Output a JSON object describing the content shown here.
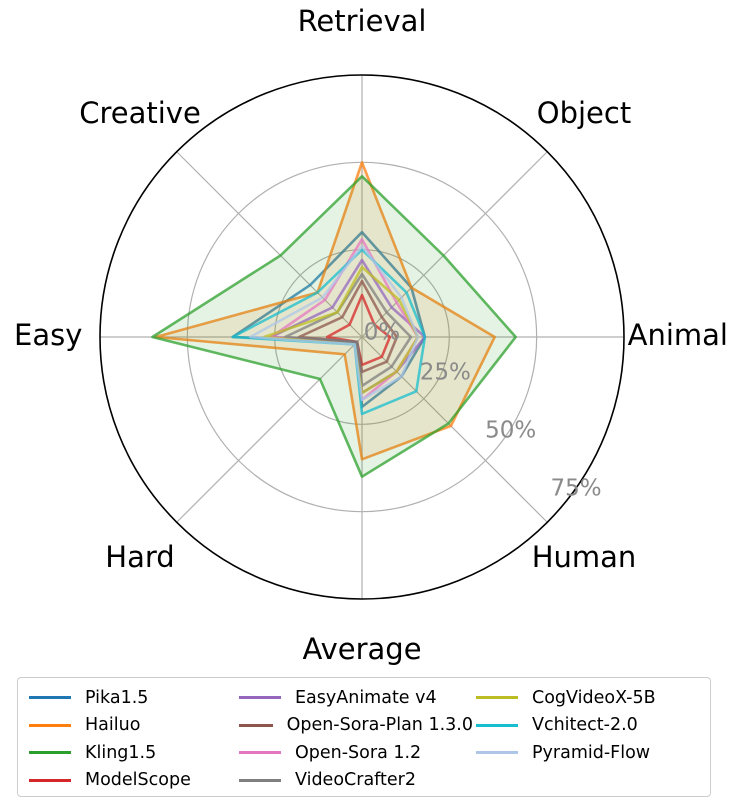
{
  "chart_data": {
    "type": "radar",
    "axes": [
      "Retrieval",
      "Object",
      "Animal",
      "Human",
      "Average",
      "Hard",
      "Easy",
      "Creative"
    ],
    "rticks": [
      "0%",
      "25%",
      "50%",
      "75%"
    ],
    "rmax": 75,
    "grid": true,
    "legend_position": "bottom",
    "series": [
      {
        "name": "Pika1.5",
        "color": "#1f77b4",
        "values": [
          30,
          20,
          18,
          16,
          20,
          2,
          37,
          21
        ],
        "fill": false
      },
      {
        "name": "Hailuo",
        "color": "#ff7f0e",
        "values": [
          50,
          20,
          38,
          36,
          35,
          7,
          59,
          18
        ],
        "fill": true
      },
      {
        "name": "Kling1.5",
        "color": "#2ca02c",
        "values": [
          46,
          33,
          44,
          35,
          40,
          17,
          60,
          33
        ],
        "fill": true
      },
      {
        "name": "ModelScope",
        "color": "#d62728",
        "values": [
          12,
          5,
          8,
          8,
          8,
          2,
          10,
          5
        ],
        "fill": false
      },
      {
        "name": "EasyAnimate v4",
        "color": "#9467bd",
        "values": [
          22,
          12,
          18,
          14,
          16,
          2,
          26,
          12
        ],
        "fill": false
      },
      {
        "name": "Open-Sora-Plan 1.3.0",
        "color": "#8c564b",
        "values": [
          16,
          8,
          10,
          10,
          10,
          2,
          18,
          8
        ],
        "fill": false
      },
      {
        "name": "Open-Sora 1.2",
        "color": "#e377c2",
        "values": [
          28,
          14,
          16,
          14,
          18,
          3,
          26,
          15
        ],
        "fill": false
      },
      {
        "name": "VideoCrafter2",
        "color": "#7f7f7f",
        "values": [
          18,
          10,
          14,
          12,
          14,
          2,
          22,
          10
        ],
        "fill": false
      },
      {
        "name": "CogVideoX-5B",
        "color": "#bcbd22",
        "values": [
          20,
          15,
          16,
          14,
          16,
          3,
          28,
          10
        ],
        "fill": false
      },
      {
        "name": "Vchitect-2.0",
        "color": "#17becf",
        "values": [
          25,
          18,
          18,
          22,
          22,
          3,
          37,
          18
        ],
        "fill": false
      },
      {
        "name": "Pyramid-Flow",
        "color": "#aec7e8",
        "values": [
          26,
          16,
          16,
          16,
          18,
          3,
          32,
          16
        ],
        "fill": false
      }
    ]
  }
}
